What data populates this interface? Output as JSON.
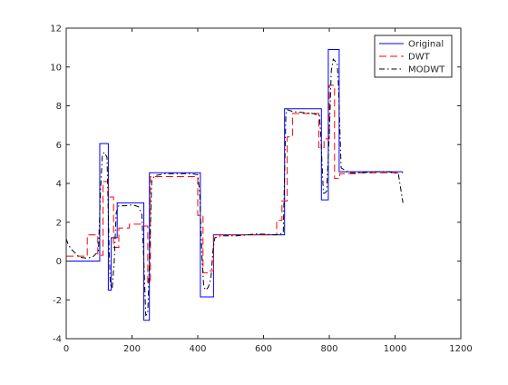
{
  "chart_data": {
    "type": "line",
    "title": "",
    "xlabel": "",
    "ylabel": "",
    "xlim": [
      0,
      1200
    ],
    "ylim": [
      -4,
      12
    ],
    "xticks": [
      0,
      200,
      400,
      600,
      800,
      1000,
      1200
    ],
    "yticks": [
      -4,
      -2,
      0,
      2,
      4,
      6,
      8,
      10,
      12
    ],
    "grid": false,
    "legend_position": "top-right",
    "series": [
      {
        "name": "Original",
        "color": "#0000ff",
        "style": "solid",
        "x": [
          0,
          102,
          102,
          128,
          128,
          137,
          137,
          155,
          155,
          236,
          236,
          253,
          253,
          408,
          408,
          448,
          448,
          664,
          664,
          776,
          776,
          797,
          797,
          830,
          830,
          1024
        ],
        "y": [
          0,
          0,
          6.05,
          6.05,
          -1.5,
          -1.5,
          1.2,
          1.2,
          3.0,
          3.0,
          -3.05,
          -3.05,
          4.55,
          4.55,
          -1.85,
          -1.85,
          1.35,
          1.35,
          7.85,
          7.85,
          3.15,
          3.15,
          10.9,
          10.9,
          4.6,
          4.6
        ]
      },
      {
        "name": "DWT",
        "color": "#ff0000",
        "style": "dashed",
        "x": [
          0,
          64,
          64,
          96,
          96,
          112,
          112,
          128,
          128,
          144,
          144,
          160,
          160,
          192,
          192,
          232,
          232,
          248,
          248,
          256,
          256,
          400,
          400,
          416,
          416,
          432,
          432,
          448,
          448,
          640,
          640,
          656,
          656,
          672,
          672,
          688,
          688,
          768,
          768,
          784,
          784,
          800,
          800,
          816,
          816,
          832,
          832,
          880,
          880,
          1024
        ],
        "y": [
          0.25,
          0.25,
          1.35,
          1.35,
          0.3,
          0.3,
          4.1,
          4.1,
          3.3,
          3.3,
          0.7,
          0.7,
          1.7,
          1.7,
          1.9,
          1.9,
          1.8,
          1.8,
          -1.1,
          -1.1,
          4.35,
          4.35,
          2.35,
          2.35,
          -0.6,
          -0.6,
          -0.5,
          -0.5,
          1.35,
          1.35,
          2.1,
          2.1,
          3.1,
          3.1,
          6.4,
          6.4,
          7.6,
          7.6,
          5.85,
          5.85,
          6.3,
          6.3,
          9.05,
          9.05,
          4.25,
          4.25,
          4.5,
          4.5,
          4.55,
          4.55
        ]
      },
      {
        "name": "MODWT",
        "color": "#000000",
        "style": "dashdot",
        "x": [
          0,
          6,
          16,
          28,
          40,
          60,
          80,
          98,
          104,
          110,
          116,
          124,
          130,
          134,
          140,
          146,
          152,
          160,
          180,
          200,
          220,
          230,
          236,
          242,
          248,
          254,
          260,
          270,
          300,
          340,
          380,
          400,
          406,
          412,
          418,
          424,
          432,
          440,
          446,
          452,
          470,
          520,
          580,
          640,
          660,
          664,
          668,
          672,
          690,
          720,
          750,
          770,
          774,
          778,
          782,
          786,
          792,
          800,
          806,
          812,
          818,
          824,
          828,
          836,
          860,
          900,
          940,
          980,
          1010,
          1024
        ],
        "y": [
          1.15,
          0.85,
          0.6,
          0.4,
          0.2,
          0.15,
          0.2,
          0.5,
          3.5,
          5.5,
          5.6,
          5.35,
          1.0,
          -1.2,
          -1.4,
          0.0,
          2.5,
          2.85,
          2.85,
          2.9,
          2.8,
          2.4,
          0.0,
          -2.8,
          -2.7,
          0.5,
          4.2,
          4.4,
          4.5,
          4.5,
          4.5,
          4.45,
          3.5,
          0.5,
          -1.3,
          -1.5,
          -1.35,
          -0.9,
          0.5,
          1.2,
          1.3,
          1.3,
          1.4,
          1.35,
          1.45,
          4.5,
          7.5,
          7.8,
          7.7,
          7.65,
          7.6,
          7.5,
          6.5,
          5.0,
          3.5,
          3.5,
          3.6,
          6.5,
          9.8,
          10.4,
          10.3,
          10.2,
          9.0,
          4.8,
          4.55,
          4.55,
          4.6,
          4.6,
          4.5,
          3.0
        ]
      }
    ]
  }
}
